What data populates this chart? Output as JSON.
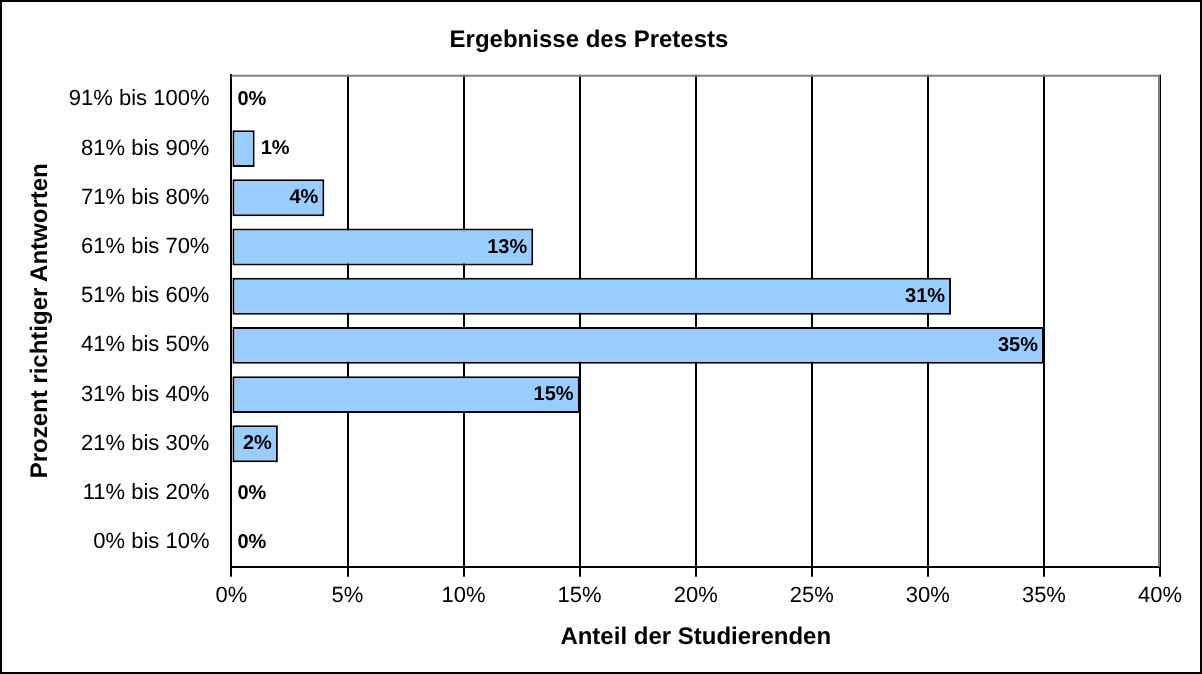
{
  "chart_data": {
    "type": "bar",
    "orientation": "horizontal",
    "title": "Ergebnisse des Pretests",
    "xlabel": "Anteil der Studierenden",
    "ylabel": "Prozent richtiger Antworten",
    "categories": [
      "91% bis 100%",
      "81% bis 90%",
      "71% bis 80%",
      "61% bis 70%",
      "51% bis 60%",
      "41% bis 50%",
      "31% bis 40%",
      "21% bis 30%",
      "11% bis 20%",
      "0% bis 10%"
    ],
    "values": [
      0,
      1,
      4,
      13,
      31,
      35,
      15,
      2,
      0,
      0
    ],
    "value_labels": [
      "0%",
      "1%",
      "4%",
      "13%",
      "31%",
      "35%",
      "15%",
      "2%",
      "0%",
      "0%"
    ],
    "color": "#99ccff",
    "xlim": [
      0,
      40
    ],
    "xticks": [
      {
        "value": 0,
        "label": "0%"
      },
      {
        "value": 5,
        "label": "5%"
      },
      {
        "value": 10,
        "label": "10%"
      },
      {
        "value": 15,
        "label": "15%"
      },
      {
        "value": 20,
        "label": "20%"
      },
      {
        "value": 25,
        "label": "25%"
      },
      {
        "value": 30,
        "label": "30%"
      },
      {
        "value": 35,
        "label": "35%"
      },
      {
        "value": 40,
        "label": "40%"
      }
    ],
    "grid": "x",
    "legend": false
  }
}
